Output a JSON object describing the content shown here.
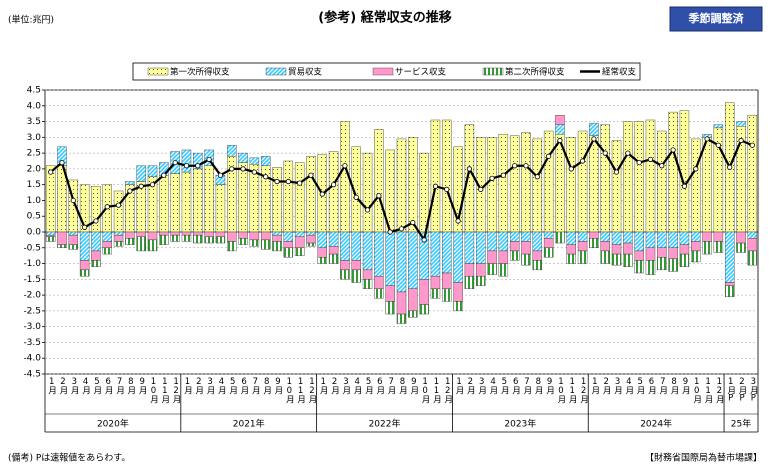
{
  "chart_data": {
    "type": "bar",
    "title": "(参考) 経常収支の推移",
    "unit": "(単位:兆円)",
    "badge": "季節調整済",
    "note": "(備考) Pは速報値をあらわす。",
    "source": "【財務省国際局為替市場課】",
    "categories": [
      "1月",
      "2月",
      "3月",
      "4月",
      "5月",
      "6月",
      "7月",
      "8月",
      "9月",
      "10月",
      "11月",
      "12月",
      "1月",
      "2月",
      "3月",
      "4月",
      "5月",
      "6月",
      "7月",
      "8月",
      "9月",
      "10月",
      "11月",
      "12月",
      "1月",
      "2月",
      "3月",
      "4月",
      "5月",
      "6月",
      "7月",
      "8月",
      "9月",
      "10月",
      "11月",
      "12月",
      "1月",
      "2月",
      "3月",
      "4月",
      "5月",
      "6月",
      "7月",
      "8月",
      "9月",
      "10月",
      "11月",
      "12月",
      "1月",
      "2月",
      "3月",
      "4月",
      "5月",
      "6月",
      "7月",
      "8月",
      "9月",
      "10月",
      "11月",
      "12月",
      "1月P",
      "2月P",
      "3月P"
    ],
    "years": [
      "2020年",
      "2021年",
      "2022年",
      "2023年",
      "2024年",
      "25年"
    ],
    "ylim": [
      -4.5,
      4.5
    ],
    "yticks": [
      4.5,
      {
        "value": 4,
        "label": "4.0"
      },
      3.5,
      {
        "value": 3,
        "label": "3.0"
      },
      2.5,
      {
        "value": 2,
        "label": "2.0"
      },
      1.5,
      {
        "value": 1,
        "label": "1.0"
      },
      0.5,
      {
        "value": 0,
        "label": "0.0"
      },
      -0.5,
      {
        "value": -1,
        "label": "-1.0"
      },
      -1.5,
      {
        "value": -2,
        "label": "-2.0"
      },
      -2.5,
      {
        "value": -3,
        "label": "-3.0"
      },
      -3.5,
      {
        "value": -4,
        "label": "-4.0"
      },
      -4.5
    ],
    "grid": true,
    "series": [
      {
        "name": "第一次所得収支",
        "type": "bar",
        "pattern": "dots",
        "color": "#ffff99",
        "values": [
          2.1,
          2.1,
          1.65,
          1.5,
          1.45,
          1.5,
          1.3,
          1.5,
          1.6,
          1.75,
          1.8,
          1.85,
          1.9,
          2.0,
          2.1,
          1.5,
          2.4,
          2.2,
          2.15,
          2.1,
          2.05,
          2.25,
          2.2,
          2.4,
          2.45,
          2.55,
          3.5,
          2.7,
          2.5,
          3.25,
          2.6,
          2.95,
          3.0,
          2.5,
          3.55,
          3.55,
          2.7,
          3.4,
          3.0,
          3.0,
          3.1,
          3.05,
          3.15,
          2.95,
          3.2,
          3.1,
          3.0,
          3.2,
          3.05,
          3.4,
          2.9,
          3.5,
          3.5,
          3.55,
          3.2,
          3.8,
          3.85,
          2.95,
          3.0,
          3.3,
          4.1,
          3.35,
          3.7
        ]
      },
      {
        "name": "貿易収支",
        "type": "bar",
        "pattern": "hatch",
        "color": "#33ccff",
        "values": [
          -0.1,
          0.6,
          -0.1,
          -0.9,
          -0.6,
          -0.3,
          -0.1,
          0.1,
          0.5,
          0.35,
          0.4,
          0.7,
          0.7,
          0.5,
          0.5,
          0.3,
          0.35,
          0.3,
          0.2,
          0.3,
          -0.1,
          -0.3,
          -0.15,
          -0.1,
          -0.5,
          -0.45,
          -0.9,
          -0.9,
          -1.2,
          -1.4,
          -1.7,
          -1.9,
          -1.8,
          -1.5,
          -1.4,
          -1.3,
          -1.6,
          -1.0,
          -1.0,
          -0.6,
          -0.6,
          -0.3,
          -0.3,
          -0.6,
          -0.2,
          0.3,
          -0.4,
          -0.3,
          0.4,
          -0.3,
          -0.4,
          -0.35,
          -0.6,
          -0.5,
          -0.5,
          -0.5,
          -0.4,
          -0.3,
          0.1,
          0.1,
          -1.6,
          0.15,
          -0.2
        ]
      },
      {
        "name": "サービス収支",
        "type": "bar",
        "pattern": "solid",
        "color": "#ff99cc",
        "values": [
          -0.05,
          -0.4,
          -0.3,
          -0.3,
          -0.3,
          -0.2,
          -0.2,
          -0.2,
          -0.15,
          -0.25,
          -0.1,
          -0.1,
          -0.1,
          -0.1,
          -0.15,
          -0.15,
          -0.3,
          -0.2,
          -0.25,
          -0.25,
          -0.2,
          -0.2,
          -0.35,
          -0.25,
          -0.3,
          -0.25,
          -0.3,
          -0.3,
          -0.3,
          -0.4,
          -0.5,
          -0.7,
          -0.7,
          -0.8,
          -0.4,
          -0.5,
          -0.6,
          -0.4,
          -0.4,
          -0.4,
          -0.4,
          -0.3,
          -0.4,
          -0.3,
          -0.3,
          0.3,
          -0.3,
          -0.3,
          -0.2,
          -0.3,
          -0.3,
          -0.35,
          -0.3,
          -0.4,
          -0.3,
          -0.35,
          -0.3,
          -0.3,
          -0.3,
          -0.3,
          -0.1,
          -0.35,
          -0.4
        ]
      },
      {
        "name": "第二次所得収支",
        "type": "bar",
        "pattern": "stripes",
        "color": "#339933",
        "values": [
          -0.15,
          -0.1,
          -0.15,
          -0.2,
          -0.2,
          -0.2,
          -0.15,
          -0.2,
          -0.45,
          -0.35,
          -0.3,
          -0.2,
          -0.2,
          -0.25,
          -0.2,
          -0.2,
          -0.3,
          -0.2,
          -0.2,
          -0.3,
          -0.3,
          -0.3,
          -0.25,
          -0.1,
          -0.2,
          -0.3,
          -0.3,
          -0.4,
          -0.3,
          -0.3,
          -0.4,
          -0.3,
          -0.2,
          -0.3,
          -0.3,
          -0.4,
          -0.3,
          -0.4,
          -0.3,
          -0.35,
          -0.4,
          -0.3,
          -0.35,
          -0.3,
          -0.3,
          -0.35,
          -0.3,
          -0.4,
          -0.3,
          -0.4,
          -0.35,
          -0.4,
          -0.4,
          -0.45,
          -0.4,
          -0.4,
          -0.4,
          -0.35,
          -0.4,
          -0.35,
          -0.35,
          -0.3,
          -0.45
        ]
      },
      {
        "name": "経常収支",
        "type": "line",
        "color": "#000000",
        "values": [
          1.9,
          2.2,
          1.0,
          0.15,
          0.35,
          0.8,
          0.85,
          1.3,
          1.45,
          1.5,
          1.8,
          2.2,
          2.1,
          2.1,
          2.3,
          1.8,
          2.0,
          2.0,
          1.9,
          1.75,
          1.6,
          1.6,
          1.55,
          1.8,
          1.2,
          1.5,
          2.1,
          1.1,
          0.7,
          1.15,
          0.0,
          0.1,
          0.3,
          -0.25,
          1.45,
          1.35,
          0.35,
          2.0,
          1.35,
          1.7,
          1.8,
          2.1,
          2.1,
          1.75,
          2.4,
          2.9,
          2.0,
          2.25,
          2.95,
          2.5,
          1.9,
          2.5,
          2.2,
          2.3,
          2.1,
          2.6,
          1.45,
          2.0,
          2.95,
          2.75,
          2.05,
          2.9,
          2.75
        ]
      }
    ]
  }
}
